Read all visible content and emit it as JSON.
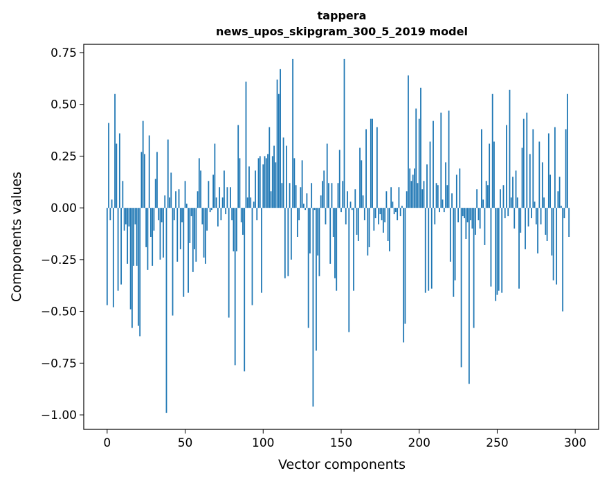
{
  "chart_data": {
    "type": "bar",
    "title": "tappera",
    "subtitle": "news_upos_skipgram_300_5_2019 model",
    "xlabel": "Vector components",
    "ylabel": "Components values",
    "xlim": [
      -15,
      315
    ],
    "ylim": [
      -1.07,
      0.79
    ],
    "xticks": [
      0,
      50,
      100,
      150,
      200,
      250,
      300
    ],
    "xtick_labels": [
      "0",
      "50",
      "100",
      "150",
      "200",
      "250",
      "300"
    ],
    "yticks": [
      -1.0,
      -0.75,
      -0.5,
      -0.25,
      0.0,
      0.25,
      0.5,
      0.75
    ],
    "ytick_labels": [
      "−1.00",
      "−0.75",
      "−0.50",
      "−0.25",
      "0.00",
      "0.25",
      "0.50",
      "0.75"
    ],
    "bar_color": "#1f77b4",
    "values": [
      -0.47,
      0.41,
      -0.06,
      0.04,
      -0.48,
      0.55,
      0.31,
      -0.4,
      0.36,
      -0.37,
      0.13,
      -0.11,
      -0.08,
      -0.27,
      -0.09,
      -0.49,
      -0.58,
      -0.28,
      -0.08,
      -0.28,
      -0.57,
      -0.62,
      0.27,
      0.42,
      0.26,
      -0.19,
      -0.3,
      0.35,
      -0.14,
      -0.28,
      -0.11,
      0.14,
      0.27,
      -0.06,
      -0.25,
      -0.07,
      -0.24,
      0.06,
      -0.99,
      0.33,
      0.05,
      0.17,
      -0.52,
      -0.06,
      0.08,
      -0.26,
      0.09,
      -0.2,
      -0.07,
      -0.43,
      0.13,
      0.02,
      -0.41,
      -0.17,
      -0.04,
      -0.31,
      -0.2,
      -0.26,
      0.08,
      0.24,
      0.18,
      -0.08,
      -0.24,
      -0.27,
      -0.11,
      0.13,
      -0.02,
      -0.01,
      0.16,
      0.31,
      0.05,
      -0.09,
      0.1,
      -0.06,
      0.05,
      0.18,
      -0.03,
      0.1,
      -0.53,
      0.1,
      -0.06,
      -0.21,
      -0.76,
      -0.21,
      0.4,
      0.24,
      -0.07,
      -0.13,
      -0.79,
      0.61,
      0.05,
      0.2,
      0.05,
      -0.47,
      0.03,
      0.18,
      -0.06,
      0.24,
      0.25,
      -0.41,
      0.21,
      0.25,
      0.24,
      0.26,
      0.39,
      0.08,
      0.25,
      0.3,
      0.22,
      0.62,
      0.55,
      0.67,
      0.12,
      0.34,
      -0.34,
      0.3,
      -0.33,
      0.12,
      -0.25,
      0.72,
      0.24,
      0.11,
      -0.14,
      -0.06,
      0.1,
      0.23,
      0.02,
      -0.01,
      0.07,
      -0.58,
      -0.22,
      0.12,
      -0.96,
      -0.01,
      -0.69,
      -0.23,
      -0.33,
      0.06,
      0.13,
      0.18,
      -0.08,
      0.31,
      0.12,
      -0.27,
      0.12,
      -0.14,
      -0.34,
      -0.4,
      0.12,
      0.28,
      -0.02,
      0.13,
      0.72,
      -0.08,
      0.08,
      -0.6,
      0.03,
      -0.01,
      -0.4,
      0.09,
      -0.13,
      -0.16,
      0.29,
      0.23,
      0.06,
      -0.06,
      0.38,
      -0.23,
      -0.19,
      0.43,
      0.43,
      -0.11,
      -0.05,
      0.39,
      -0.08,
      -0.03,
      -0.06,
      -0.12,
      -0.07,
      0.08,
      -0.16,
      -0.21,
      0.1,
      0.03,
      -0.03,
      -0.02,
      -0.06,
      0.1,
      -0.04,
      0.01,
      -0.65,
      -0.56,
      0.08,
      0.64,
      0.19,
      0.13,
      0.16,
      0.19,
      0.48,
      0.12,
      0.43,
      0.58,
      0.09,
      0.13,
      -0.41,
      0.21,
      -0.4,
      0.32,
      -0.39,
      0.42,
      -0.08,
      0.12,
      0.11,
      -0.02,
      0.46,
      0.04,
      -0.02,
      0.22,
      0.11,
      0.47,
      -0.26,
      0.07,
      -0.43,
      -0.35,
      0.16,
      -0.07,
      0.19,
      -0.77,
      -0.04,
      -0.05,
      -0.15,
      -0.07,
      -0.85,
      -0.06,
      -0.1,
      -0.58,
      -0.13,
      0.09,
      -0.06,
      -0.1,
      0.38,
      0.04,
      -0.18,
      0.13,
      0.11,
      0.31,
      -0.38,
      0.55,
      0.32,
      -0.45,
      -0.42,
      -0.4,
      0.09,
      -0.41,
      0.11,
      -0.05,
      0.4,
      -0.04,
      0.57,
      0.05,
      0.15,
      -0.1,
      0.18,
      0.05,
      -0.39,
      -0.12,
      0.29,
      0.43,
      -0.2,
      0.46,
      -0.09,
      0.26,
      -0.05,
      0.38,
      0.03,
      -0.08,
      -0.22,
      0.32,
      -0.08,
      0.22,
      0.05,
      -0.13,
      -0.16,
      0.36,
      0.16,
      -0.23,
      -0.35,
      0.39,
      -0.37,
      0.08,
      0.15,
      0.01,
      -0.5,
      -0.05,
      0.38,
      0.55,
      -0.14
    ]
  }
}
